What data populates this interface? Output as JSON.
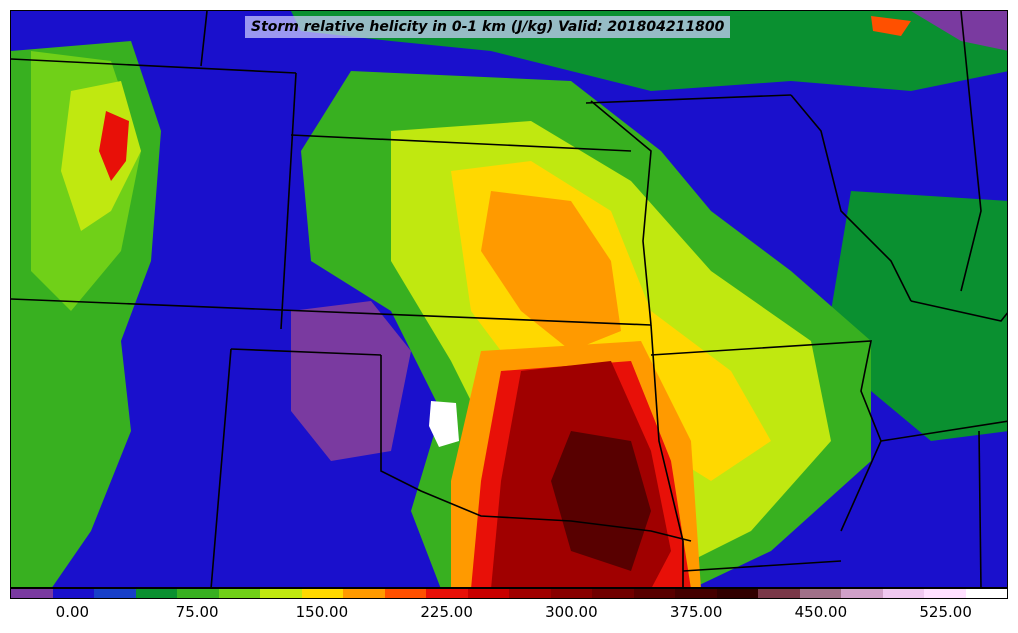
{
  "title": "Storm relative helicity in 0-1 km (J/kg) Valid: 201804211800",
  "colorbar": {
    "colors": [
      "#7a3aa0",
      "#1a10cc",
      "#1840c8",
      "#0a9030",
      "#38b020",
      "#70d018",
      "#c0e810",
      "#ffd800",
      "#ff9a00",
      "#ff5000",
      "#e81008",
      "#c80000",
      "#a00000",
      "#880000",
      "#700000",
      "#580000",
      "#440000",
      "#300000",
      "#7a3848",
      "#a07088",
      "#d0a0c8",
      "#f0c8f0",
      "#ffe0ff",
      "#ffffff"
    ],
    "tick_labels": [
      "0.00",
      "75.00",
      "150.00",
      "225.00",
      "300.00",
      "375.00",
      "450.00",
      "525.00"
    ],
    "tick_values": [
      0,
      75,
      150,
      225,
      300,
      375,
      450,
      525
    ],
    "vmin": -37.5,
    "vmax": 562.5
  }
}
